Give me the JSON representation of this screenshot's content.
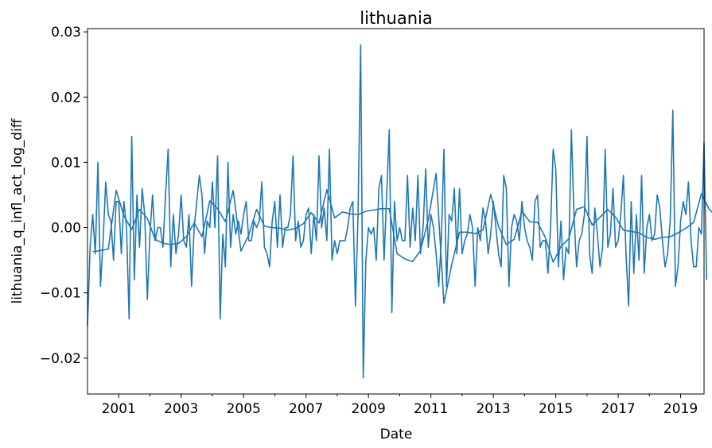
{
  "chart_data": {
    "type": "line",
    "title": "lithuania",
    "xlabel": "Date",
    "ylabel": "lithuania_q_infl_act_log_diff",
    "x_range": [
      "2000-01",
      "2019-10"
    ],
    "ylim": [
      -0.0255,
      0.0305
    ],
    "grid": false,
    "legend": "none",
    "x_tick_labels": [
      "2001",
      "2003",
      "2005",
      "2007",
      "2009",
      "2011",
      "2013",
      "2015",
      "2017",
      "2019"
    ],
    "y_ticks": [
      -0.02,
      -0.01,
      0.0,
      0.01,
      0.02,
      0.03
    ],
    "y_tick_labels": [
      "−0.02",
      "−0.01",
      "0.00",
      "0.01",
      "0.02",
      "0.03"
    ],
    "series": [
      {
        "color": "#1f77b4",
        "start": "2000-01",
        "frequency": "monthly",
        "values": [
          -0.015,
          -0.003,
          0.002,
          -0.004,
          0.01,
          -0.009,
          -0.002,
          0.007,
          0.002,
          0.001,
          -0.005,
          0.004,
          0.004,
          -0.004,
          0.004,
          0.0,
          -0.014,
          0.014,
          -0.008,
          0.005,
          -0.003,
          0.006,
          0.002,
          -0.011,
          -0.001,
          0.005,
          -0.002,
          0.0,
          0.0,
          -0.003,
          0.005,
          0.012,
          -0.006,
          0.002,
          -0.004,
          -0.001,
          0.005,
          -0.002,
          -0.003,
          0.002,
          -0.009,
          0.0,
          0.004,
          0.008,
          0.005,
          -0.004,
          0.001,
          0.0,
          0.007,
          0.0,
          0.011,
          -0.014,
          -0.001,
          -0.006,
          0.01,
          -0.003,
          0.002,
          -0.001,
          0.001,
          -0.001,
          0.002,
          0.004,
          -0.002,
          -0.002,
          0.001,
          0.0,
          0.001,
          0.007,
          -0.003,
          -0.004,
          -0.006,
          0.001,
          0.004,
          -0.003,
          0.005,
          -0.003,
          0.0,
          0.0,
          0.002,
          0.011,
          -0.002,
          0.001,
          -0.003,
          -0.002,
          0.002,
          0.003,
          -0.004,
          0.002,
          -0.002,
          0.011,
          0.0,
          0.003,
          -0.002,
          0.012,
          -0.005,
          -0.002,
          -0.004,
          -0.002,
          -0.002,
          -0.002,
          0.0,
          0.003,
          0.004,
          -0.012,
          0.002,
          0.028,
          -0.023,
          -0.005,
          0.0,
          -0.001,
          0.0,
          -0.005,
          0.006,
          0.008,
          -0.005,
          0.005,
          0.015,
          -0.013,
          0.004,
          -0.002,
          0.0,
          -0.002,
          -0.002,
          0.008,
          -0.003,
          0.003,
          -0.002,
          0.008,
          -0.004,
          0.0,
          0.009,
          -0.003,
          0.002,
          0.0,
          -0.004,
          -0.009,
          -0.002,
          0.012,
          -0.009,
          0.002,
          0.001,
          0.006,
          -0.004,
          0.006,
          -0.004,
          -0.002,
          -0.001,
          0.002,
          0.0,
          -0.009,
          0.0,
          -0.002,
          0.003,
          0.001,
          -0.004,
          -0.001,
          0.004,
          0.0,
          -0.004,
          -0.006,
          0.008,
          0.006,
          -0.009,
          0.0,
          0.002,
          0.001,
          -0.002,
          0.004,
          0.0,
          -0.002,
          -0.003,
          -0.005,
          0.004,
          0.005,
          -0.003,
          -0.002,
          -0.002,
          -0.007,
          0.0,
          0.012,
          0.009,
          -0.006,
          0.001,
          -0.008,
          -0.003,
          -0.004,
          0.015,
          0.002,
          -0.006,
          -0.002,
          -0.001,
          0.002,
          0.014,
          -0.004,
          -0.007,
          0.003,
          -0.001,
          -0.006,
          -0.003,
          0.012,
          -0.003,
          -0.001,
          0.006,
          -0.003,
          -0.002,
          0.002,
          0.008,
          -0.004,
          -0.012,
          0.004,
          -0.007,
          0.002,
          -0.005,
          0.008,
          -0.007,
          0.0,
          0.002,
          -0.002,
          -0.001,
          0.005,
          0.003,
          -0.002,
          -0.006,
          -0.004,
          0.001,
          0.018,
          -0.009,
          -0.006,
          0.001,
          0.004,
          0.002,
          0.007,
          -0.002,
          -0.006,
          -0.006,
          0.0,
          -0.001,
          0.013,
          -0.008
        ]
      },
      {
        "color": "#1f77b4",
        "start": "2000-03",
        "frequency": "quarterly",
        "values": [
          -0.0037,
          -0.0035,
          -0.0033,
          0.0057,
          0.0018,
          -0.0003,
          0.0028,
          0.0014,
          -0.0018,
          -0.0024,
          -0.0026,
          -0.0024,
          -0.0014,
          0.0007,
          -0.0014,
          0.0041,
          0.0029,
          0.0009,
          0.0057,
          -0.0036,
          -0.0011,
          0.0028,
          0.0002,
          0.0,
          -0.0001,
          -0.0004,
          -0.0001,
          0.0006,
          0.0023,
          0.0007,
          0.0058,
          0.0015,
          0.0024,
          0.0021,
          0.002,
          0.0025,
          0.0027,
          0.0029,
          0.0029,
          -0.004,
          -0.0048,
          -0.0052,
          -0.0035,
          0.0012,
          0.0083,
          -0.0116,
          -0.0057,
          -0.0007,
          -0.0007,
          -0.0009,
          -0.0004,
          0.0051,
          0.0002,
          -0.0026,
          -0.0018,
          0.0025,
          0.0009,
          0.0008,
          -0.0015,
          -0.0053,
          -0.0029,
          -0.0017,
          0.0028,
          0.0032,
          0.0004,
          0.0016,
          0.0028,
          0.0016,
          -0.0004,
          -0.0006,
          -0.0008,
          -0.0015,
          -0.0018,
          -0.0015,
          -0.0014,
          -0.0008,
          -0.0001,
          0.0008,
          0.0052,
          0.0028,
          0.0016,
          0.0012,
          0.0011,
          -0.0021,
          -0.0008,
          0.0015,
          0.0026,
          0.0027,
          0.0003,
          -0.0019,
          -0.0014,
          -0.0009,
          -0.0002,
          -0.0008,
          -0.0004,
          0.0025,
          0.0004,
          -0.0021,
          -0.0024,
          0.0003,
          0.0036,
          0.0016,
          0.0001,
          -0.0014,
          -0.0024,
          0.0009
        ]
      }
    ]
  }
}
